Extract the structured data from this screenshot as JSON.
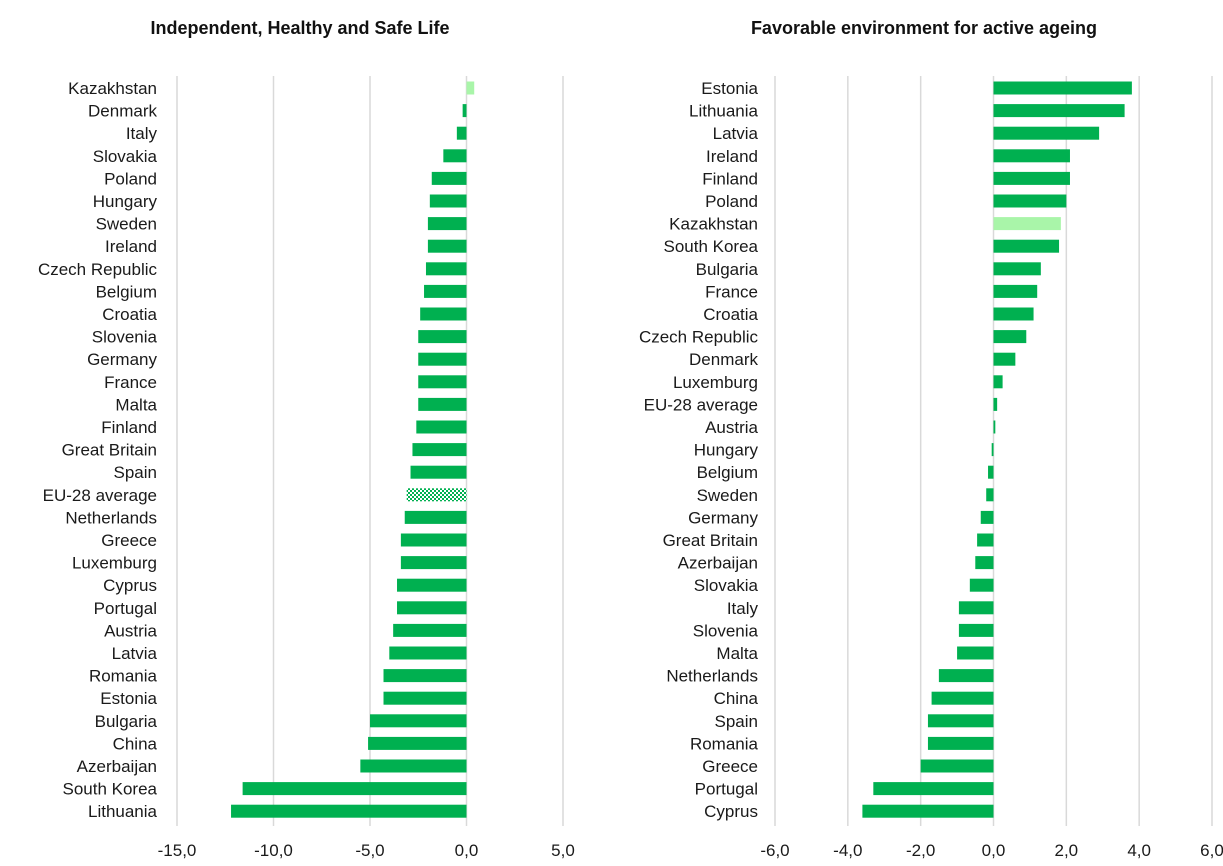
{
  "colors": {
    "bar": "#00b050",
    "highlight": "#a9f5a9",
    "grid": "#d9d9d9",
    "text": "#1a1a1a"
  },
  "chart_data": [
    {
      "type": "bar",
      "orientation": "horizontal",
      "title": "Independent, Healthy and Safe Life",
      "xlabel": "",
      "ylabel": "",
      "xlim": [
        -15,
        5
      ],
      "x_ticks": [
        "-15,0",
        "-10,0",
        "-5,0",
        "0,0",
        "5,0"
      ],
      "grid": true,
      "categories": [
        "Kazakhstan",
        "Denmark",
        "Italy",
        "Slovakia",
        "Poland",
        "Hungary",
        "Sweden",
        "Ireland",
        "Czech Republic",
        "Belgium",
        "Croatia",
        "Slovenia",
        "Germany",
        "France",
        "Malta",
        "Finland",
        "Great Britain",
        "Spain",
        "EU-28 average",
        "Netherlands",
        "Greece",
        "Luxemburg",
        "Cyprus",
        "Portugal",
        "Austria",
        "Latvia",
        "Romania",
        "Estonia",
        "Bulgaria",
        "China",
        "Azerbaijan",
        "South Korea",
        "Lithuania"
      ],
      "values": [
        0.4,
        -0.2,
        -0.5,
        -1.2,
        -1.8,
        -1.9,
        -2.0,
        -2.0,
        -2.1,
        -2.2,
        -2.4,
        -2.5,
        -2.5,
        -2.5,
        -2.5,
        -2.6,
        -2.8,
        -2.9,
        -3.1,
        -3.2,
        -3.4,
        -3.4,
        -3.6,
        -3.6,
        -3.8,
        -4.0,
        -4.3,
        -4.3,
        -5.0,
        -5.1,
        -5.5,
        -11.6,
        -12.2
      ],
      "highlight": {
        "Kazakhstan": "light",
        "EU-28 average": "dotted"
      }
    },
    {
      "type": "bar",
      "orientation": "horizontal",
      "title": "Favorable environment for active ageing",
      "xlabel": "",
      "ylabel": "",
      "xlim": [
        -6,
        6
      ],
      "x_ticks": [
        "-6,0",
        "-4,0",
        "-2,0",
        "0,0",
        "2,0",
        "4,0",
        "6,0"
      ],
      "grid": true,
      "categories": [
        "Estonia",
        "Lithuania",
        "Latvia",
        "Ireland",
        "Finland",
        "Poland",
        "Kazakhstan",
        "South Korea",
        "Bulgaria",
        "France",
        "Croatia",
        "Czech Republic",
        "Denmark",
        "Luxemburg",
        "EU-28 average",
        "Austria",
        "Hungary",
        "Belgium",
        "Sweden",
        "Germany",
        "Great Britain",
        "Azerbaijan",
        "Slovakia",
        "Italy",
        "Slovenia",
        "Malta",
        "Netherlands",
        "China",
        "Spain",
        "Romania",
        "Greece",
        "Portugal",
        "Cyprus"
      ],
      "values": [
        3.8,
        3.6,
        2.9,
        2.1,
        2.1,
        2.0,
        1.85,
        1.8,
        1.3,
        1.2,
        1.1,
        0.9,
        0.6,
        0.25,
        0.1,
        0.05,
        -0.05,
        -0.15,
        -0.2,
        -0.35,
        -0.45,
        -0.5,
        -0.65,
        -0.95,
        -0.95,
        -1.0,
        -1.5,
        -1.7,
        -1.8,
        -1.8,
        -2.0,
        -3.3,
        -3.6
      ],
      "highlight": {
        "Kazakhstan": "light"
      }
    }
  ]
}
